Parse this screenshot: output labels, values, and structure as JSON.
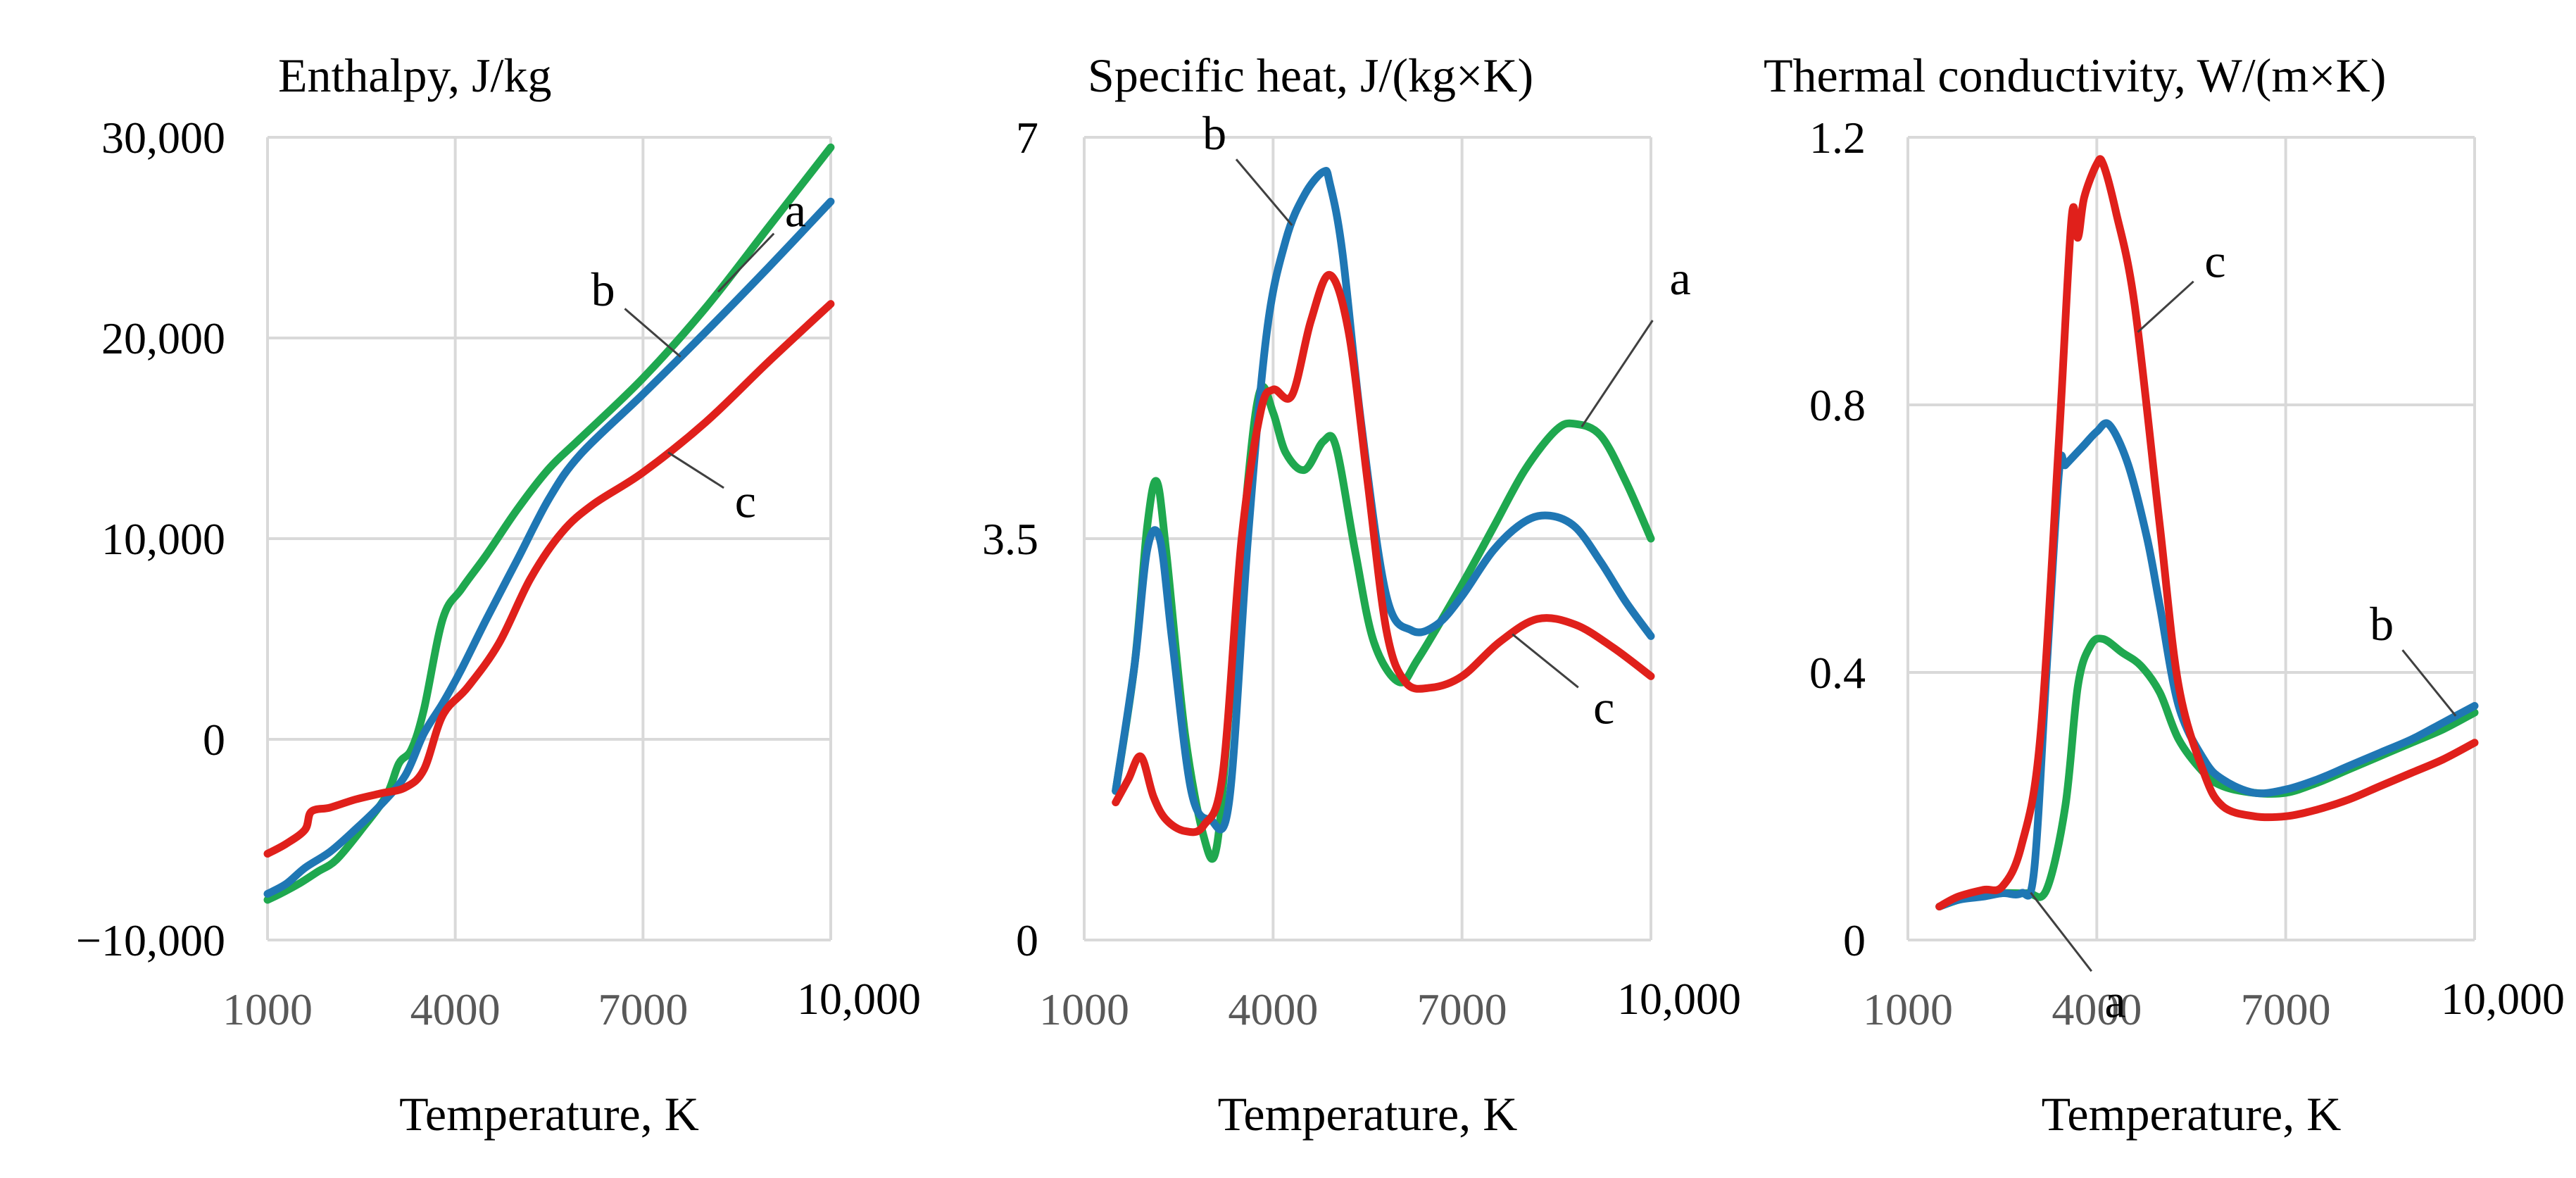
{
  "colors": {
    "a": "#1fa84f",
    "b": "#1f77b4",
    "c": "#e0201b"
  },
  "chart_data": [
    {
      "type": "line",
      "title": "Enthalpy, J/kg",
      "xlabel": "Temperature, K",
      "ylabel": "",
      "xlim": [
        1000,
        10000
      ],
      "ylim": [
        -10000,
        30000
      ],
      "xticks": [
        1000,
        4000,
        7000,
        10000
      ],
      "xtick_labels": [
        "1000",
        "4000",
        "7000",
        "10,000"
      ],
      "yticks": [
        -10000,
        0,
        10000,
        20000,
        30000
      ],
      "ytick_labels": [
        "−10,000",
        "0",
        "10,000",
        "20,000",
        "30,000"
      ],
      "series": [
        {
          "name": "a",
          "color": "a",
          "x": [
            1000,
            1200,
            1500,
            1800,
            2100,
            2500,
            2900,
            3100,
            3300,
            3500,
            3800,
            4100,
            4500,
            5000,
            5500,
            6000,
            7000,
            8000,
            9000,
            10000
          ],
          "y": [
            -8000,
            -7700,
            -7200,
            -6600,
            -6000,
            -4500,
            -2800,
            -1200,
            -500,
            1500,
            6000,
            7500,
            9200,
            11500,
            13500,
            15000,
            18000,
            21500,
            25500,
            29500
          ]
        },
        {
          "name": "b",
          "color": "b",
          "x": [
            1000,
            1300,
            1600,
            2000,
            2400,
            2800,
            3200,
            3500,
            3800,
            4100,
            4500,
            5000,
            5500,
            6000,
            7000,
            8000,
            9000,
            10000
          ],
          "y": [
            -7700,
            -7200,
            -6400,
            -5600,
            -4500,
            -3300,
            -1800,
            300,
            1800,
            3500,
            6000,
            9000,
            12000,
            14200,
            17200,
            20300,
            23500,
            26800
          ]
        },
        {
          "name": "c",
          "color": "c",
          "x": [
            1000,
            1300,
            1600,
            1700,
            2000,
            2400,
            2800,
            3200,
            3500,
            3800,
            4200,
            4700,
            5200,
            5700,
            6200,
            7000,
            8000,
            9000,
            10000
          ],
          "y": [
            -5700,
            -5200,
            -4500,
            -3600,
            -3400,
            -3000,
            -2700,
            -2400,
            -1500,
            1200,
            2600,
            4800,
            8000,
            10300,
            11700,
            13300,
            15800,
            18800,
            21700
          ]
        }
      ],
      "annotations": [
        {
          "text": "a",
          "series": "a",
          "x": 8200
        },
        {
          "text": "b",
          "series": "b",
          "x": 7600
        },
        {
          "text": "c",
          "series": "c",
          "x": 7400
        }
      ]
    },
    {
      "type": "line",
      "title": "Specific heat, J/(kg×K)",
      "xlabel": "Temperature, K",
      "ylabel": "",
      "xlim": [
        1000,
        10000
      ],
      "ylim": [
        0,
        7
      ],
      "xticks": [
        1000,
        4000,
        7000,
        10000
      ],
      "xtick_labels": [
        "1000",
        "4000",
        "7000",
        "10,000"
      ],
      "yticks": [
        0,
        3.5,
        7
      ],
      "ytick_labels": [
        "0",
        "3.5",
        "7"
      ],
      "series": [
        {
          "name": "a",
          "color": "a",
          "x": [
            1500,
            1800,
            2000,
            2150,
            2300,
            2600,
            2900,
            3100,
            3300,
            3600,
            3800,
            4000,
            4200,
            4500,
            4800,
            5000,
            5300,
            5600,
            6000,
            6300,
            7000,
            7500,
            8000,
            8500,
            8800,
            9200,
            9600,
            10000
          ],
          "y": [
            1.3,
            2.4,
            3.6,
            4.0,
            3.4,
            1.8,
            0.9,
            0.8,
            2.0,
            4.0,
            4.8,
            4.6,
            4.25,
            4.1,
            4.35,
            4.3,
            3.4,
            2.6,
            2.25,
            2.45,
            3.1,
            3.6,
            4.1,
            4.45,
            4.5,
            4.4,
            4.0,
            3.5
          ]
        },
        {
          "name": "b",
          "color": "b",
          "x": [
            1500,
            1800,
            2000,
            2200,
            2400,
            2700,
            3000,
            3300,
            3600,
            3900,
            4200,
            4500,
            4800,
            4900,
            5100,
            5400,
            5800,
            6200,
            6600,
            7000,
            7500,
            8000,
            8400,
            8800,
            9200,
            9600,
            10000
          ],
          "y": [
            1.3,
            2.4,
            3.4,
            3.5,
            2.6,
            1.3,
            1.05,
            1.2,
            3.5,
            5.3,
            6.1,
            6.5,
            6.7,
            6.6,
            6.0,
            4.5,
            3.0,
            2.7,
            2.75,
            3.0,
            3.4,
            3.65,
            3.7,
            3.6,
            3.3,
            2.95,
            2.65
          ]
        },
        {
          "name": "c",
          "color": "c",
          "x": [
            1500,
            1700,
            1900,
            2100,
            2300,
            2600,
            2900,
            3200,
            3500,
            3800,
            4000,
            4300,
            4600,
            4900,
            5200,
            5500,
            5800,
            6100,
            6500,
            7000,
            7600,
            8200,
            8800,
            9400,
            10000
          ],
          "y": [
            1.2,
            1.4,
            1.6,
            1.25,
            1.05,
            0.95,
            1.0,
            1.45,
            3.5,
            4.6,
            4.8,
            4.75,
            5.4,
            5.8,
            5.3,
            4.0,
            2.7,
            2.25,
            2.2,
            2.3,
            2.6,
            2.8,
            2.75,
            2.55,
            2.3
          ]
        }
      ],
      "annotations": [
        {
          "text": "a",
          "series": "a",
          "x": 8900
        },
        {
          "text": "b",
          "series": "b",
          "x": 4300
        },
        {
          "text": "c",
          "series": "c",
          "x": 7800
        }
      ]
    },
    {
      "type": "line",
      "title": "Thermal conductivity, W/(m×K)",
      "xlabel": "Temperature, K",
      "ylabel": "",
      "xlim": [
        1000,
        10000
      ],
      "ylim": [
        0,
        1.2
      ],
      "xticks": [
        1000,
        4000,
        7000,
        10000
      ],
      "xtick_labels": [
        "1000",
        "4000",
        "7000",
        "10,000"
      ],
      "yticks": [
        0,
        0.4,
        0.8,
        1.2
      ],
      "ytick_labels": [
        "0",
        "0.4",
        "0.8",
        "1.2"
      ],
      "series": [
        {
          "name": "a",
          "color": "a",
          "x": [
            1500,
            1800,
            2100,
            2500,
            2900,
            3200,
            3500,
            3700,
            3900,
            4100,
            4400,
            4700,
            5000,
            5300,
            5700,
            6000,
            6500,
            7000,
            7500,
            8000,
            8500,
            9000,
            9500,
            10000
          ],
          "y": [
            0.05,
            0.06,
            0.065,
            0.07,
            0.07,
            0.075,
            0.2,
            0.38,
            0.44,
            0.45,
            0.43,
            0.41,
            0.37,
            0.3,
            0.25,
            0.23,
            0.22,
            0.22,
            0.235,
            0.255,
            0.275,
            0.295,
            0.315,
            0.34
          ]
        },
        {
          "name": "b",
          "color": "b",
          "x": [
            1500,
            1800,
            2200,
            2500,
            2800,
            3000,
            3200,
            3400,
            3500,
            3700,
            3800,
            4000,
            4200,
            4500,
            4800,
            5000,
            5300,
            5700,
            6000,
            6500,
            7000,
            7500,
            8000,
            8500,
            9000,
            9500,
            10000
          ],
          "y": [
            0.05,
            0.06,
            0.065,
            0.07,
            0.07,
            0.1,
            0.4,
            0.7,
            0.71,
            0.73,
            0.74,
            0.76,
            0.77,
            0.71,
            0.6,
            0.5,
            0.35,
            0.27,
            0.24,
            0.22,
            0.225,
            0.24,
            0.26,
            0.28,
            0.3,
            0.325,
            0.35
          ]
        },
        {
          "name": "c",
          "color": "c",
          "x": [
            1500,
            1800,
            2200,
            2500,
            2800,
            3100,
            3400,
            3600,
            3700,
            3800,
            4000,
            4100,
            4300,
            4600,
            5000,
            5300,
            5700,
            6000,
            6500,
            7000,
            7500,
            8000,
            8500,
            9000,
            9500,
            10000
          ],
          "y": [
            0.05,
            0.065,
            0.075,
            0.08,
            0.14,
            0.3,
            0.75,
            1.08,
            1.05,
            1.11,
            1.16,
            1.16,
            1.09,
            0.95,
            0.62,
            0.38,
            0.25,
            0.2,
            0.185,
            0.185,
            0.195,
            0.21,
            0.23,
            0.25,
            0.27,
            0.295
          ]
        }
      ],
      "annotations": [
        {
          "text": "a",
          "series": "a",
          "x": 2950
        },
        {
          "text": "b",
          "series": "b",
          "x": 9700
        },
        {
          "text": "c",
          "series": "c",
          "x": 4650
        }
      ]
    }
  ]
}
